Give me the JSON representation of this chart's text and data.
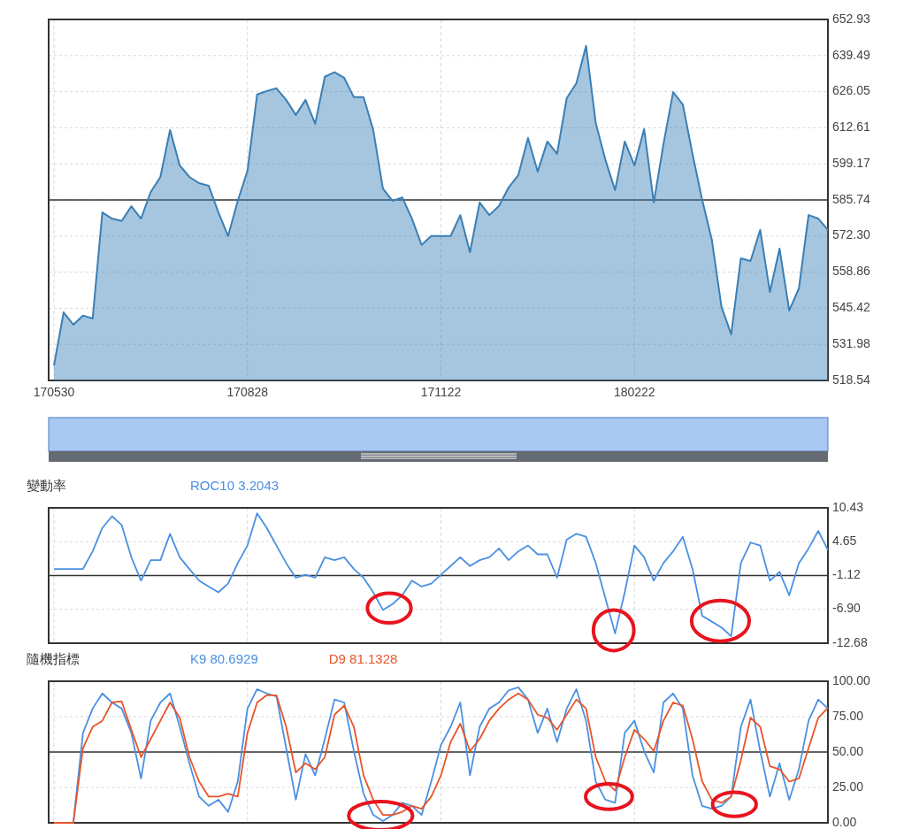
{
  "chart_data": [
    {
      "type": "area",
      "categories": [
        "170530",
        null,
        null,
        null,
        null,
        null,
        null,
        null,
        null,
        null,
        null,
        null,
        null,
        null,
        null,
        null,
        null,
        null,
        null,
        null,
        "170828",
        null,
        null,
        null,
        null,
        null,
        null,
        null,
        null,
        null,
        null,
        null,
        null,
        null,
        null,
        null,
        null,
        null,
        null,
        null,
        "171122",
        null,
        null,
        null,
        null,
        null,
        null,
        null,
        null,
        null,
        null,
        null,
        null,
        null,
        null,
        null,
        null,
        null,
        null,
        null,
        "180222",
        null,
        null,
        null,
        null,
        null,
        null,
        null,
        null,
        null,
        null,
        null,
        null,
        null,
        null,
        null,
        null,
        null,
        null,
        null,
        null
      ],
      "series": [
        {
          "color": "#3a7fb5",
          "values": [
            524.1,
            543.9,
            539.3,
            542.7,
            541.6,
            581.1,
            578.8,
            577.9,
            583.4,
            578.8,
            588.7,
            594.3,
            611.8,
            598.6,
            594.3,
            592.0,
            591.0,
            581.1,
            572.3,
            585.4,
            596.6,
            625.0,
            626.3,
            627.3,
            623.0,
            617.4,
            623.0,
            614.1,
            631.6,
            633.3,
            631.2,
            624.0,
            624.0,
            611.8,
            590.0,
            585.4,
            586.7,
            578.8,
            569.0,
            572.3,
            572.3,
            572.3,
            580.1,
            566.3,
            584.8,
            580.1,
            583.5,
            590.4,
            595.0,
            608.8,
            596.3,
            607.5,
            602.9,
            623.6,
            629.2,
            643.1,
            614.4,
            600.6,
            589.4,
            607.5,
            598.6,
            612.1,
            584.8,
            606.5,
            625.9,
            621.3,
            602.9,
            585.8,
            570.9,
            545.9,
            535.7,
            564.0,
            563.0,
            574.6,
            551.5,
            567.6,
            544.6,
            552.8,
            580.1,
            578.8,
            574.6
          ]
        }
      ],
      "ylim": [
        518.54,
        652.93
      ],
      "yticks": [
        518.54,
        531.98,
        545.42,
        558.86,
        {
          "value": 572.3,
          "label": "572.30"
        },
        585.74,
        599.17,
        612.61,
        626.05,
        639.49,
        652.93
      ],
      "grid": true,
      "ref_lines": [
        {
          "axis": "y",
          "value": 585.74,
          "color": "#333333"
        }
      ]
    },
    {
      "type": "line",
      "title": "變動率",
      "categories": [
        "170530",
        null,
        null,
        null,
        null,
        null,
        null,
        null,
        null,
        null,
        null,
        null,
        null,
        null,
        null,
        null,
        null,
        null,
        null,
        null,
        "170828",
        null,
        null,
        null,
        null,
        null,
        null,
        null,
        null,
        null,
        null,
        null,
        null,
        null,
        null,
        null,
        null,
        null,
        null,
        null,
        "171122",
        null,
        null,
        null,
        null,
        null,
        null,
        null,
        null,
        null,
        null,
        null,
        null,
        null,
        null,
        null,
        null,
        null,
        null,
        null,
        "180222",
        null,
        null,
        null,
        null,
        null,
        null,
        null,
        null,
        null,
        null,
        null,
        null,
        null,
        null,
        null,
        null,
        null,
        null,
        null,
        null
      ],
      "series": [
        {
          "name": "ROC10 3.2043",
          "color": "#4a90e2",
          "values": [
            0.0,
            0.0,
            0.0,
            0.0,
            3.0,
            7.0,
            9.0,
            7.5,
            2.0,
            -2.0,
            1.5,
            1.5,
            6.0,
            2.0,
            0.0,
            -2.0,
            -3.0,
            -4.0,
            -2.5,
            1.0,
            4.0,
            9.5,
            7.0,
            4.0,
            1.0,
            -1.5,
            -1.0,
            -1.5,
            2.0,
            1.5,
            2.0,
            0.0,
            -1.5,
            -4.0,
            -7.0,
            -6.0,
            -4.5,
            -2.0,
            -3.0,
            -2.5,
            -1.0,
            0.5,
            2.0,
            0.5,
            1.5,
            2.0,
            3.5,
            1.5,
            3.0,
            4.0,
            2.5,
            2.5,
            -1.5,
            5.0,
            6.0,
            5.5,
            1.0,
            -5.0,
            -11.0,
            -4.0,
            4.0,
            2.0,
            -2.0,
            1.0,
            3.0,
            5.5,
            0.0,
            -8.0,
            -9.0,
            -10.0,
            -11.5,
            1.0,
            4.5,
            4.0,
            -2.0,
            -0.5,
            -4.5,
            1.0,
            3.5,
            6.5,
            3.2
          ]
        }
      ],
      "ylim": [
        -12.68,
        10.43
      ],
      "yticks": [
        -12.68,
        {
          "value": -6.9,
          "label": "-6.90"
        },
        -1.12,
        4.65,
        10.43
      ],
      "grid": true,
      "legend": "top left",
      "tick_labels": "y",
      "ref_lines": [
        {
          "axis": "y",
          "value": -1.12,
          "color": "#333333"
        }
      ]
    },
    {
      "type": "line",
      "title": "隨機指標",
      "categories": [
        "170530",
        null,
        null,
        null,
        null,
        null,
        null,
        null,
        null,
        null,
        null,
        null,
        null,
        null,
        null,
        null,
        null,
        null,
        null,
        null,
        "170828",
        null,
        null,
        null,
        null,
        null,
        null,
        null,
        null,
        null,
        null,
        null,
        null,
        null,
        null,
        null,
        null,
        null,
        null,
        null,
        "171122",
        null,
        null,
        null,
        null,
        null,
        null,
        null,
        null,
        null,
        null,
        null,
        null,
        null,
        null,
        null,
        null,
        null,
        null,
        null,
        "180222",
        null,
        null,
        null,
        null,
        null,
        null,
        null,
        null,
        null,
        null,
        null,
        null,
        null,
        null,
        null,
        null,
        null,
        null,
        null,
        null
      ],
      "series": [
        {
          "name": "K9 80.6929",
          "color": "#4a90e2",
          "values": [
            0,
            0,
            0,
            63.5,
            80.7,
            91.4,
            85.0,
            80.7,
            63.5,
            31.3,
            72.1,
            85.0,
            91.4,
            67.8,
            42.1,
            18.5,
            12.0,
            16.3,
            7.7,
            29.2,
            80.7,
            94.4,
            91.4,
            89.3,
            52.8,
            16.3,
            48.5,
            33.5,
            59.2,
            87.1,
            85.0,
            50.6,
            20.6,
            5.6,
            1.3,
            5.6,
            14.2,
            12.0,
            5.6,
            29.2,
            54.9,
            67.8,
            85.0,
            33.5,
            67.8,
            80.7,
            85.0,
            93.6,
            95.7,
            87.1,
            63.5,
            80.7,
            57.1,
            80.7,
            94.4,
            72.1,
            29.2,
            16.3,
            14.2,
            63.5,
            72.1,
            50.6,
            35.6,
            85.0,
            91.4,
            80.7,
            33.5,
            12.0,
            9.9,
            12.0,
            18.5,
            67.8,
            87.1,
            50.6,
            18.5,
            42.1,
            16.3,
            37.8,
            72.1,
            87.1,
            80.7
          ]
        },
        {
          "name": "D9 81.1328",
          "color": "#e8542a",
          "values": [
            0,
            0,
            0,
            52.8,
            67.8,
            72.1,
            85.0,
            85.8,
            65.7,
            46.4,
            59.2,
            72.1,
            85.0,
            74.2,
            46.4,
            29.2,
            18.5,
            18.5,
            20.6,
            18.5,
            63.5,
            85.0,
            90.1,
            90.1,
            67.8,
            35.6,
            42.1,
            37.8,
            46.4,
            76.4,
            82.8,
            67.8,
            33.5,
            16.3,
            5.6,
            5.6,
            7.7,
            12.0,
            9.9,
            18.5,
            33.5,
            57.1,
            70.0,
            50.6,
            59.2,
            72.1,
            80.7,
            87.1,
            91.4,
            87.1,
            76.4,
            74.2,
            65.7,
            76.4,
            87.1,
            80.7,
            46.4,
            29.2,
            22.7,
            46.4,
            65.7,
            59.2,
            50.6,
            72.1,
            85.0,
            82.8,
            59.2,
            29.2,
            16.3,
            14.2,
            18.5,
            44.2,
            74.2,
            67.8,
            39.9,
            37.8,
            29.2,
            31.3,
            52.8,
            74.2,
            81.1
          ]
        }
      ],
      "ylim": [
        0,
        100
      ],
      "yticks": [
        {
          "value": 0,
          "label": "0.00"
        },
        {
          "value": 25,
          "label": "25.00"
        },
        {
          "value": 50,
          "label": "50.00"
        },
        {
          "value": 75,
          "label": "75.00"
        },
        {
          "value": 100,
          "label": "100.00"
        }
      ],
      "grid": true,
      "legend": "top left",
      "tick_labels": "y",
      "ref_lines": [
        {
          "axis": "y",
          "value": 50,
          "color": "#333333"
        }
      ]
    }
  ]
}
